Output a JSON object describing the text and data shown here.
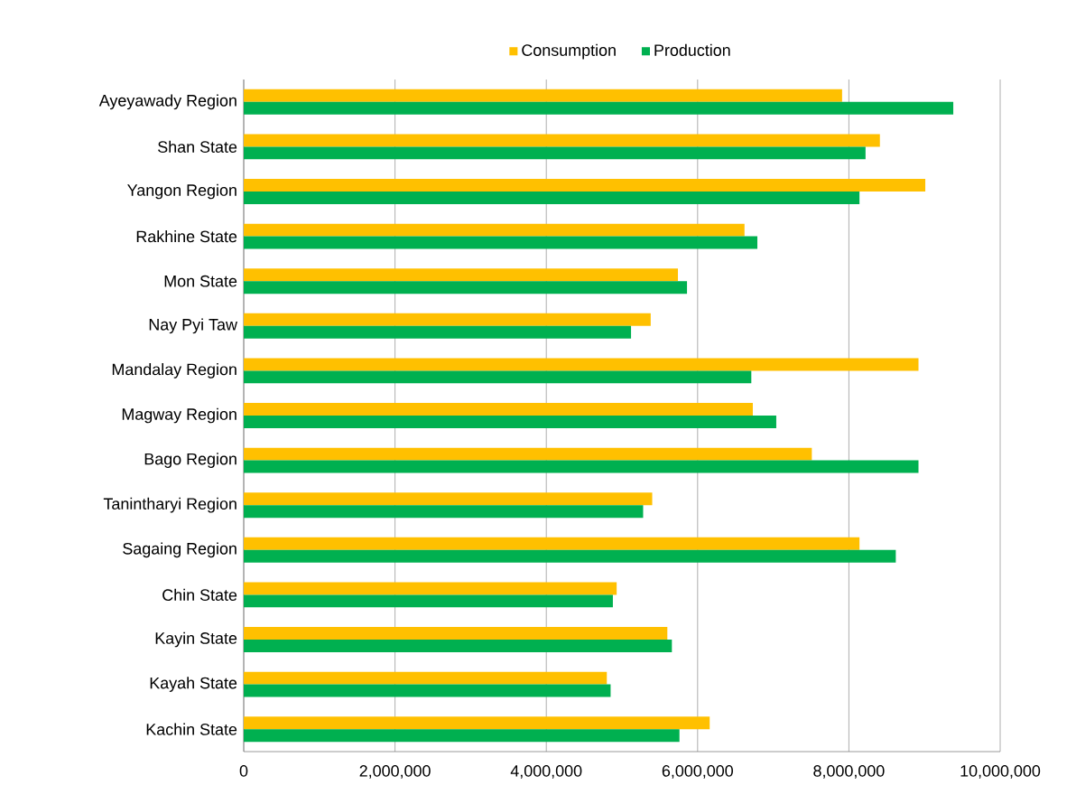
{
  "chart_data": {
    "type": "bar",
    "orientation": "horizontal",
    "categories": [
      "Ayeyawady Region",
      "Shan State",
      "Yangon Region",
      "Rakhine State",
      "Mon State",
      "Nay Pyi Taw",
      "Mandalay Region",
      "Magway Region",
      "Bago Region",
      "Tanintharyi Region",
      "Sagaing Region",
      "Chin State",
      "Kayin State",
      "Kayah State",
      "Kachin State"
    ],
    "series": [
      {
        "name": "Consumption",
        "color": "#ffc000",
        "values": [
          7910000,
          8410000,
          9010000,
          6620000,
          5740000,
          5380000,
          8920000,
          6730000,
          7510000,
          5400000,
          8140000,
          4930000,
          5600000,
          4800000,
          6160000
        ]
      },
      {
        "name": "Production",
        "color": "#00b050",
        "values": [
          9380000,
          8220000,
          8140000,
          6790000,
          5860000,
          5120000,
          6710000,
          7040000,
          8920000,
          5280000,
          8620000,
          4880000,
          5660000,
          4850000,
          5760000
        ]
      }
    ],
    "xlim": [
      0,
      10000000
    ],
    "xticks": [
      0,
      {
        "value": 2000000,
        "label": "2,000,000"
      },
      {
        "value": 4000000,
        "label": "4,000,000"
      },
      {
        "value": 6000000,
        "label": "6,000,000"
      },
      {
        "value": 8000000,
        "label": "8,000,000"
      },
      {
        "value": 10000000,
        "label": "10,000,000"
      }
    ],
    "grid": "x",
    "legend": "top"
  }
}
